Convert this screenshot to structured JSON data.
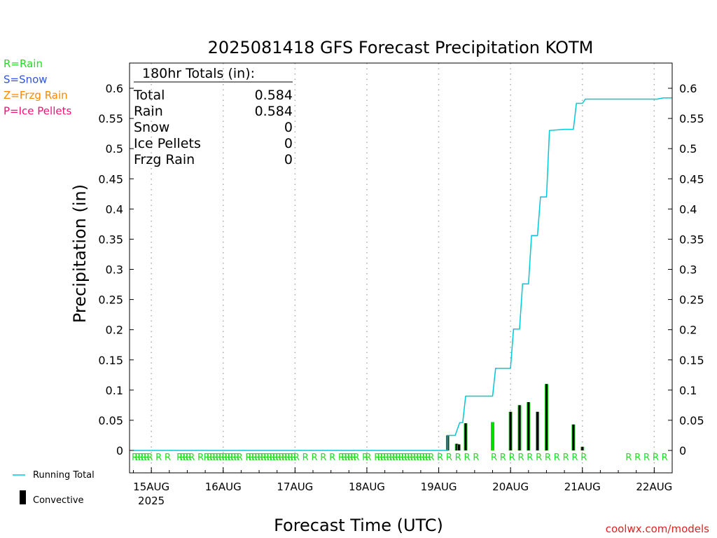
{
  "chart_data": {
    "type": "bar",
    "title": "2025081418 GFS Forecast Precipitation KOTM",
    "xlabel": "Forecast Time (UTC)",
    "ylabel": "Precipitation (in)",
    "ylim": [
      0,
      0.6
    ],
    "y_ticks": [
      "0",
      "0.05",
      "0.1",
      "0.15",
      "0.2",
      "0.25",
      "0.3",
      "0.35",
      "0.4",
      "0.45",
      "0.5",
      "0.55",
      "0.6"
    ],
    "x_unit": "forecast hour",
    "x_range": [
      0,
      180
    ],
    "x_ticks": [
      {
        "hour": 6,
        "label": "15AUG",
        "sublabel": "2025"
      },
      {
        "hour": 30,
        "label": "16AUG",
        "sublabel": ""
      },
      {
        "hour": 54,
        "label": "17AUG",
        "sublabel": ""
      },
      {
        "hour": 78,
        "label": "18AUG",
        "sublabel": ""
      },
      {
        "hour": 102,
        "label": "19AUG",
        "sublabel": ""
      },
      {
        "hour": 126,
        "label": "20AUG",
        "sublabel": ""
      },
      {
        "hour": 150,
        "label": "21AUG",
        "sublabel": ""
      },
      {
        "hour": 174,
        "label": "22AUG",
        "sublabel": ""
      }
    ],
    "grid": "vertical dotted",
    "precip_legend": [
      {
        "text": "R=Rain",
        "color": "#22dd22"
      },
      {
        "text": "S=Snow",
        "color": "#3355dd"
      },
      {
        "text": "Z=Frzg Rain",
        "color": "#ff8800"
      },
      {
        "text": "P=Ice Pellets",
        "color": "#ee1177"
      }
    ],
    "series_legend": [
      {
        "text": "Running Total",
        "color": "#00c8d8",
        "kind": "line"
      },
      {
        "text": "Convective",
        "color": "#000000",
        "kind": "bar"
      }
    ],
    "totals": {
      "header": "180hr Totals (in):",
      "rows": [
        {
          "label": "Total",
          "value": "0.584"
        },
        {
          "label": "Rain",
          "value": "0.584"
        },
        {
          "label": "Snow",
          "value": "0"
        },
        {
          "label": "Ice Pellets",
          "value": "0"
        },
        {
          "label": "Frzg Rain",
          "value": "0"
        }
      ]
    },
    "series": [
      {
        "name": "Running Total",
        "points": [
          [
            0,
            0
          ],
          [
            105,
            0
          ],
          [
            105,
            0.025
          ],
          [
            107.5,
            0.025
          ],
          [
            109,
            0.046
          ],
          [
            110,
            0.046
          ],
          [
            111,
            0.09
          ],
          [
            120,
            0.09
          ],
          [
            121,
            0.136
          ],
          [
            126,
            0.136
          ],
          [
            127,
            0.201
          ],
          [
            129,
            0.201
          ],
          [
            130,
            0.276
          ],
          [
            132,
            0.276
          ],
          [
            133,
            0.356
          ],
          [
            135,
            0.356
          ],
          [
            136,
            0.42
          ],
          [
            138,
            0.42
          ],
          [
            139,
            0.53
          ],
          [
            144,
            0.532
          ],
          [
            147,
            0.532
          ],
          [
            148,
            0.575
          ],
          [
            150,
            0.575
          ],
          [
            151,
            0.582
          ],
          [
            175,
            0.582
          ],
          [
            177,
            0.584
          ],
          [
            180,
            0.584
          ]
        ]
      },
      {
        "name": "Precipitation",
        "bars": [
          {
            "hour": 105,
            "total": 0.025,
            "convective": 0.025
          },
          {
            "hour": 108,
            "total": 0.011,
            "convective": 0.011
          },
          {
            "hour": 108.75,
            "total": 0.01,
            "convective": 0.01
          },
          {
            "hour": 111,
            "total": 0.045,
            "convective": 0.045
          },
          {
            "hour": 120,
            "total": 0.047,
            "convective": 0
          },
          {
            "hour": 126,
            "total": 0.064,
            "convective": 0.064
          },
          {
            "hour": 129,
            "total": 0.075,
            "convective": 0.075
          },
          {
            "hour": 132,
            "total": 0.08,
            "convective": 0.08
          },
          {
            "hour": 135,
            "total": 0.064,
            "convective": 0.064
          },
          {
            "hour": 138,
            "total": 0.11,
            "convective": 0.11
          },
          {
            "hour": 147,
            "total": 0.043,
            "convective": 0.043
          },
          {
            "hour": 150,
            "total": 0.006,
            "convective": 0.006
          }
        ]
      }
    ],
    "precip_type_marks": [
      {
        "hours": [
          0,
          1,
          2,
          3,
          4,
          5,
          8,
          11,
          15,
          16,
          17,
          18,
          19,
          22,
          24,
          25,
          26,
          27,
          28,
          29,
          30,
          31,
          32,
          33,
          34,
          35,
          38,
          39,
          40,
          41,
          42,
          43,
          44,
          45,
          46,
          47,
          48,
          49,
          50,
          51,
          52,
          53,
          54,
          57,
          60,
          63,
          66,
          69,
          70,
          71,
          72,
          73,
          74,
          77,
          78,
          81,
          82,
          83,
          84,
          85,
          86,
          87,
          88,
          89,
          90,
          91,
          92,
          93,
          94,
          95,
          96,
          97,
          98,
          99,
          102,
          105,
          108,
          111,
          114,
          120,
          123,
          126,
          129,
          132,
          135,
          138,
          141,
          144,
          147,
          150,
          165,
          168,
          171,
          174,
          177
        ],
        "symbol": "R",
        "color": "#22dd22"
      }
    ]
  },
  "watermark": "coolwx.com/models"
}
